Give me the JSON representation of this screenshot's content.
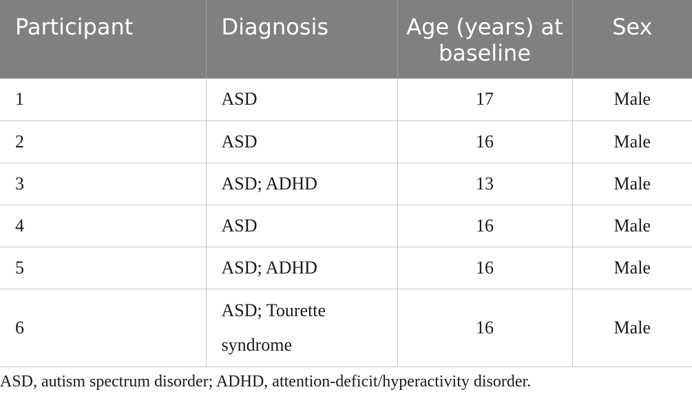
{
  "table": {
    "headers": [
      "Participant",
      "Diagnosis",
      "Age (years) at baseline",
      "Sex"
    ],
    "rows": [
      {
        "participant": "1",
        "diagnosis": "ASD",
        "age": "17",
        "sex": "Male"
      },
      {
        "participant": "2",
        "diagnosis": "ASD",
        "age": "16",
        "sex": "Male"
      },
      {
        "participant": "3",
        "diagnosis": "ASD; ADHD",
        "age": "13",
        "sex": "Male"
      },
      {
        "participant": "4",
        "diagnosis": "ASD",
        "age": "16",
        "sex": "Male"
      },
      {
        "participant": "5",
        "diagnosis": "ASD; ADHD",
        "age": "16",
        "sex": "Male"
      },
      {
        "participant": "6",
        "diagnosis": "ASD; Tourette syndrome",
        "age": "16",
        "sex": "Male"
      }
    ]
  },
  "footnote": "ASD, autism spectrum disorder; ADHD, attention-deficit/hyperactivity disorder."
}
